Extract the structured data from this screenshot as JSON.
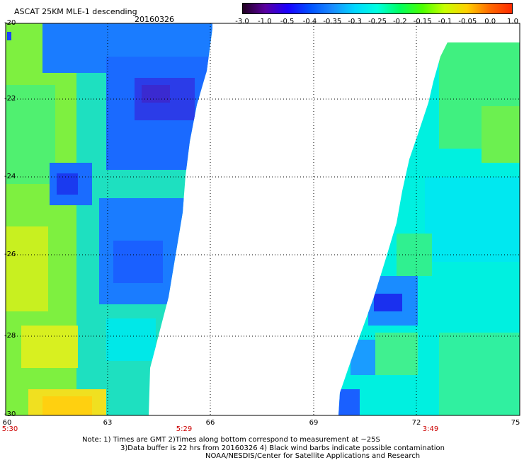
{
  "header": {
    "title": "ASCAT 25KM MLE-1 descending",
    "date": "20160326"
  },
  "colorbar": {
    "labels": [
      "-3.0",
      "-1.0",
      "-0.5",
      "-0.4",
      "-0.35",
      "-0.3",
      "-0.25",
      "-0.2",
      "-0.15",
      "-0.1",
      "-0.05",
      "0.0",
      "1.0"
    ],
    "colors": [
      "#220022",
      "#5a00a0",
      "#1a00ff",
      "#0050ff",
      "#1a8cff",
      "#00d8ff",
      "#00ffe0",
      "#00ff60",
      "#4cff00",
      "#c8ff00",
      "#ffd000",
      "#ff6a00",
      "#ff2a00"
    ]
  },
  "axes": {
    "longitude_ticks": [
      "60",
      "63",
      "66",
      "69",
      "72",
      "75"
    ],
    "latitude_ticks": [
      "-20",
      "-22",
      "-24",
      "-26",
      "-28",
      "-30"
    ]
  },
  "pass_times": [
    "5:30",
    "5:29",
    "3:49"
  ],
  "notes": {
    "line1": "Note: 1) Times are GMT 2)Times along bottom correspond to measurement at ~25S",
    "line2": "3)Data buffer is 22 hrs from 20160326 4) Black wind barbs indicate possible contamination",
    "line3": "NOAA/NESDIS/Center for Satellite Applications and Research"
  }
}
